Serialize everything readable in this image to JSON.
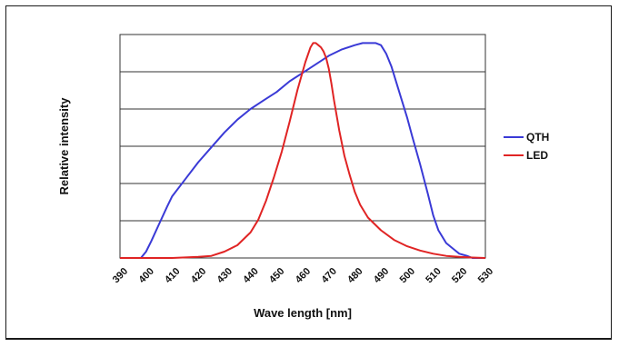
{
  "chart_data": {
    "type": "line",
    "title": "",
    "xlabel": "Wave length [nm]",
    "ylabel": "Relative intensity",
    "xlim": [
      390,
      530
    ],
    "ylim": [
      0,
      1.05
    ],
    "x_ticks": [
      "390",
      "400",
      "410",
      "420",
      "430",
      "440",
      "450",
      "460",
      "470",
      "480",
      "490",
      "500",
      "510",
      "520",
      "530"
    ],
    "grid": "horizontal",
    "legend_position": "right",
    "series": [
      {
        "name": "QTH",
        "color": "#3a3ad6",
        "x": [
          390,
          398,
          400,
          402,
          405,
          408,
          410,
          415,
          420,
          425,
          430,
          435,
          440,
          445,
          450,
          455,
          460,
          465,
          470,
          475,
          480,
          483,
          486,
          488,
          490,
          492,
          494,
          496,
          498,
          500,
          502,
          505,
          508,
          510,
          512,
          515,
          518,
          520,
          523,
          525,
          528,
          530
        ],
        "y": [
          0,
          0,
          0.03,
          0.08,
          0.16,
          0.24,
          0.29,
          0.37,
          0.45,
          0.52,
          0.59,
          0.65,
          0.7,
          0.74,
          0.78,
          0.83,
          0.87,
          0.91,
          0.95,
          0.98,
          1.0,
          1.01,
          1.01,
          1.01,
          1.0,
          0.96,
          0.9,
          0.82,
          0.74,
          0.66,
          0.57,
          0.44,
          0.3,
          0.2,
          0.13,
          0.07,
          0.04,
          0.02,
          0.01,
          0.0,
          0.0,
          0.0
        ]
      },
      {
        "name": "LED",
        "color": "#e02424",
        "x": [
          390,
          410,
          420,
          425,
          430,
          435,
          440,
          443,
          446,
          449,
          452,
          455,
          458,
          461,
          463,
          464,
          465,
          466,
          467,
          468,
          469,
          470,
          471,
          472,
          474,
          476,
          478,
          480,
          482,
          485,
          490,
          495,
          500,
          505,
          510,
          515,
          520,
          525,
          530
        ],
        "y": [
          0,
          0,
          0.005,
          0.01,
          0.03,
          0.06,
          0.12,
          0.18,
          0.27,
          0.38,
          0.5,
          0.64,
          0.79,
          0.92,
          0.99,
          1.01,
          1.01,
          1.0,
          0.99,
          0.97,
          0.94,
          0.89,
          0.82,
          0.74,
          0.6,
          0.48,
          0.39,
          0.31,
          0.25,
          0.19,
          0.13,
          0.085,
          0.055,
          0.035,
          0.02,
          0.01,
          0.005,
          0.002,
          0.0
        ]
      }
    ]
  }
}
